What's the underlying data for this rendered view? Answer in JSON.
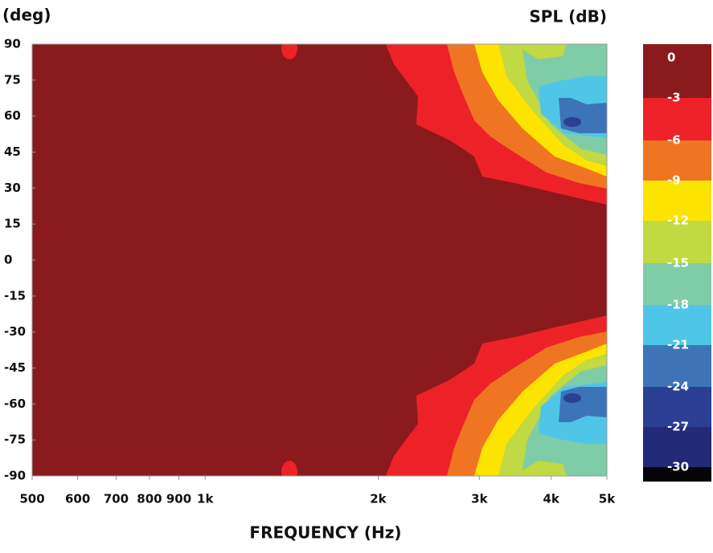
{
  "chart_data": {
    "type": "contour",
    "y_axis_label": "(deg)",
    "colorbar_label": "SPL (dB)",
    "x_axis_label": "FREQUENCY (Hz)",
    "xscale": "log",
    "xlim": [
      500,
      5000
    ],
    "xticks": [
      500,
      600,
      700,
      800,
      900,
      {
        "value": 1000,
        "label": "1k"
      },
      {
        "value": 2000,
        "label": "2k"
      },
      {
        "value": 3000,
        "label": "3k"
      },
      {
        "value": 4000,
        "label": "4k"
      },
      {
        "value": 5000,
        "label": "5k"
      }
    ],
    "ylim": [
      -90,
      90
    ],
    "yticks": [
      90,
      75,
      60,
      45,
      30,
      15,
      0,
      -15,
      -30,
      -45,
      -60,
      -75,
      -90
    ],
    "levels": [
      0,
      -3,
      -6,
      -9,
      -12,
      -15,
      -18,
      -21,
      -24,
      -27,
      -30
    ],
    "colors": [
      "#8b1a1c",
      "#ed2228",
      "#f07522",
      "#fde400",
      "#c1d942",
      "#7fcca8",
      "#4fc6e7",
      "#3d74b8",
      "#2b3f95",
      "#232a78",
      "#050505"
    ]
  }
}
